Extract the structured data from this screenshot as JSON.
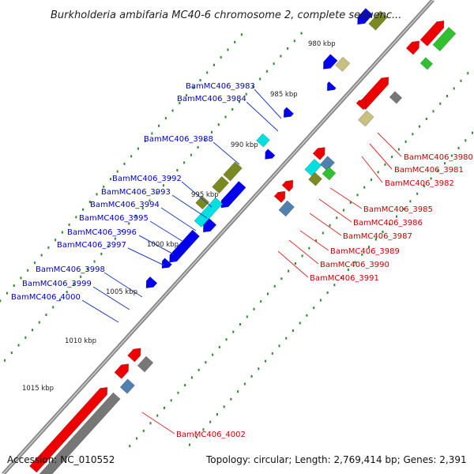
{
  "title": "Burkholderia ambifaria MC40-6 chromosome 2, complete sequenc...",
  "footer": {
    "accession": "Accession: NC_010552",
    "topology": "Topology: circular; Length: 2,769,414 bp; Genes: 2,391"
  },
  "kbp_labels": [
    "980 kbp",
    "985 kbp",
    "990 kbp",
    "995 kbp",
    "1000 kbp",
    "1005 kbp",
    "1010 kbp",
    "1015 kbp"
  ],
  "genes_left": [
    "BamMC406_3983",
    "BamMC406_3984",
    "BamMC406_3988",
    "BamMC406_3992",
    "BamMC406_3993",
    "BamMC406_3994",
    "BamMC406_3995",
    "BamMC406_3996",
    "BamMC406_3997",
    "BamMC406_3998",
    "BamMC406_3999",
    "BamMC406_4000"
  ],
  "genes_right": [
    "BamMC406_3980",
    "BamMC406_3981",
    "BamMC406_3982",
    "BamMC406_3985",
    "BamMC406_3986",
    "BamMC406_3987",
    "BamMC406_3989",
    "BamMC406_3990",
    "BamMC406_3991",
    "BamMC406_4002"
  ],
  "colors": {
    "forward_gene": "#0000ee",
    "reverse_gene": "#ee0000",
    "olive": "#7a8a20",
    "khaki": "#c8c080",
    "cyan": "#00e0e0",
    "green": "#30c030",
    "steel": "#5080b0",
    "gray": "#777777",
    "backbone": "#888888",
    "tick": "#2a8a2a"
  }
}
